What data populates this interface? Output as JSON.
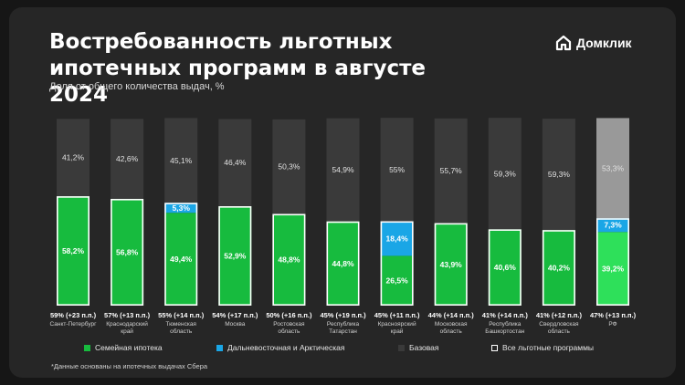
{
  "header": {
    "title": "Востребованность льготных ипотечных программ в августе 2024",
    "subtitle": "Доля от общего количества выдач, %"
  },
  "brand": {
    "name": "Домклик",
    "icon": "house-logo-icon"
  },
  "colors": {
    "family": "#17bb3e",
    "far_east": "#1aa6e6",
    "base": "#3a3a3a",
    "base_rf": "#999999",
    "rf_highlight": "#2ee05a",
    "outline": "#ffffff",
    "background": "#262626"
  },
  "chart_data": {
    "type": "bar",
    "stacked": true,
    "title": "Востребованность льготных ипотечных программ в августе 2024",
    "subtitle": "Доля от общего количества выдач, %",
    "ylim": [
      0,
      100
    ],
    "categories": [
      {
        "name": "Санкт-Петербург",
        "total_label": "59% (+23 п.п.)"
      },
      {
        "name": "Краснодарский край",
        "total_label": "57% (+13 п.п.)"
      },
      {
        "name": "Тюменская область",
        "total_label": "55% (+14 п.п.)"
      },
      {
        "name": "Москва",
        "total_label": "54% (+17 п.п.)"
      },
      {
        "name": "Ростовская область",
        "total_label": "50% (+16 п.п.)"
      },
      {
        "name": "Республика Татарстан",
        "total_label": "45% (+19 п.п.)"
      },
      {
        "name": "Красноярский край",
        "total_label": "45% (+11 п.п.)"
      },
      {
        "name": "Московская область",
        "total_label": "44% (+14 п.п.)"
      },
      {
        "name": "Республика Башкортостан",
        "total_label": "41% (+14 п.п.)"
      },
      {
        "name": "Свердловская область",
        "total_label": "41% (+12 п.п.)"
      },
      {
        "name": "РФ",
        "total_label": "47% (+13 п.п.)"
      }
    ],
    "series": [
      {
        "key": "family",
        "name": "Семейная ипотека",
        "values": [
          58.2,
          56.8,
          49.4,
          52.9,
          48.8,
          44.8,
          26.5,
          43.9,
          40.6,
          40.2,
          39.2
        ],
        "labels": [
          "58,2%",
          "56,8%",
          "49,4%",
          "52,9%",
          "48,8%",
          "44,8%",
          "26,5%",
          "43,9%",
          "40,6%",
          "40,2%",
          "39,2%"
        ]
      },
      {
        "key": "far_east",
        "name": "Дальневосточная и Арктическая",
        "values": [
          0,
          0,
          5.3,
          0,
          0,
          0,
          18.4,
          0,
          0,
          0,
          7.3
        ],
        "labels": [
          "",
          "",
          "5,3%",
          "",
          "",
          "",
          "18,4%",
          "",
          "",
          "",
          "7,3%"
        ]
      },
      {
        "key": "base",
        "name": "Базовая",
        "values": [
          41.2,
          42.6,
          45.1,
          46.4,
          50.3,
          54.9,
          55,
          55.7,
          59.3,
          59.3,
          53.3
        ],
        "labels": [
          "41,2%",
          "42,6%",
          "45,1%",
          "46,4%",
          "50,3%",
          "54,9%",
          "55%",
          "55,7%",
          "59,3%",
          "59,3%",
          "53,3%"
        ]
      }
    ],
    "outline_series": {
      "name": "Все льготные программы",
      "description": "white outline around all preferential segments"
    },
    "grid": false,
    "legend_position": "bottom"
  },
  "footnote": "*Данные основаны на ипотечных выдачах Сбера"
}
